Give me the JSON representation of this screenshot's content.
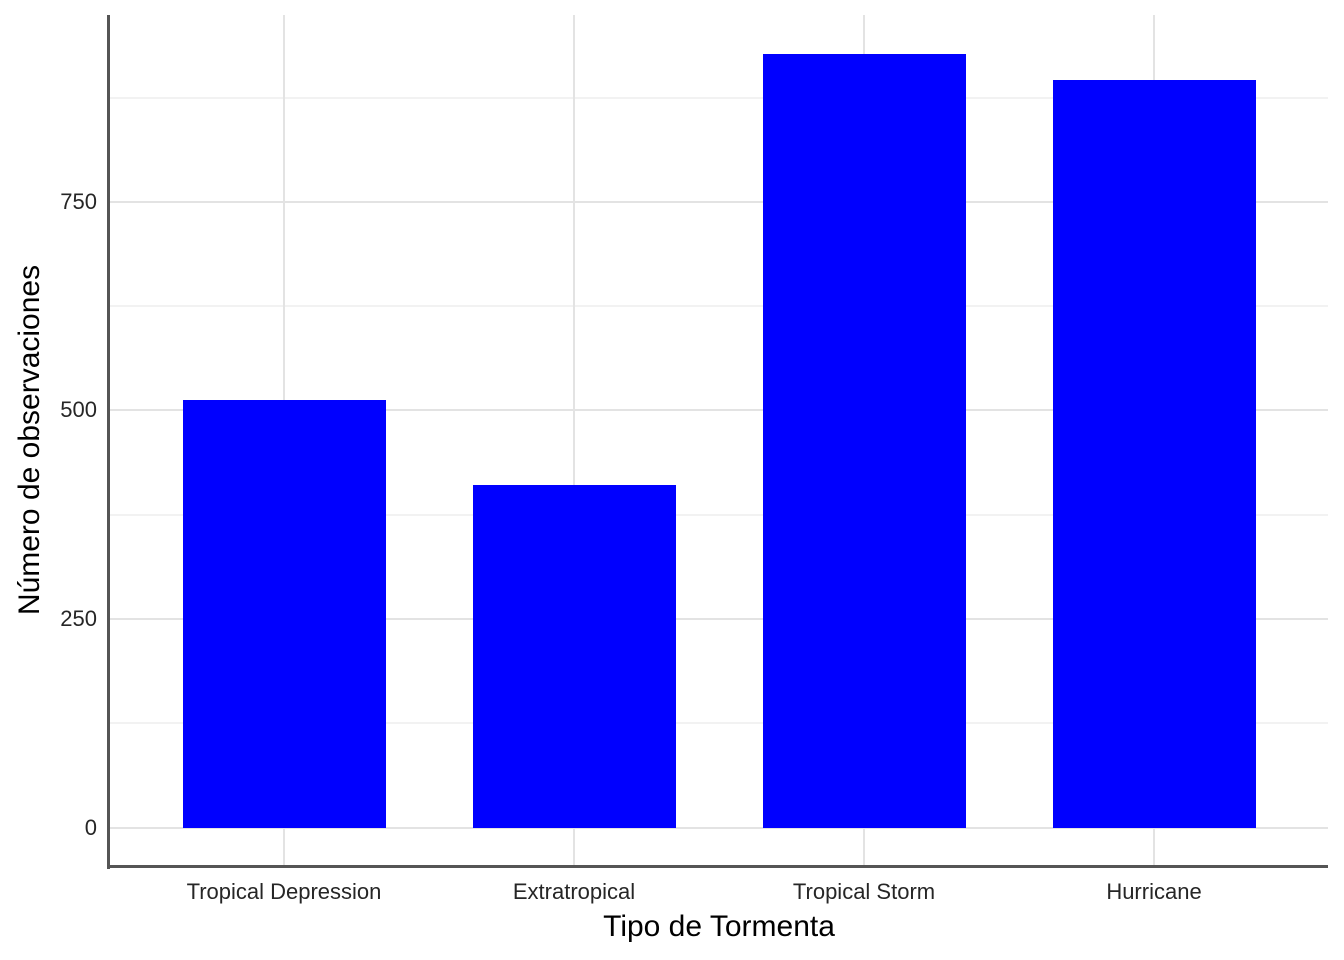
{
  "chart_data": {
    "type": "bar",
    "title": "",
    "xlabel": "Tipo de Tormenta",
    "ylabel": "Número de observaciones",
    "categories": [
      "Tropical Depression",
      "Extratropical",
      "Tropical Storm",
      "Hurricane"
    ],
    "values": [
      513,
      411,
      927,
      896
    ],
    "y_major_ticks": [
      0,
      250,
      500,
      750
    ],
    "y_minor_ticks": [
      125,
      375,
      625,
      875
    ],
    "ylim": [
      -46,
      974
    ],
    "grid": "on",
    "legend": "none",
    "colors": {
      "bar": "#0000ff",
      "axis_line": "#555555",
      "grid_major": "#e3e3e3",
      "grid_minor": "#f2f2f2",
      "tick_label": "#262626",
      "axis_title": "#000000",
      "background": "#ffffff"
    }
  }
}
